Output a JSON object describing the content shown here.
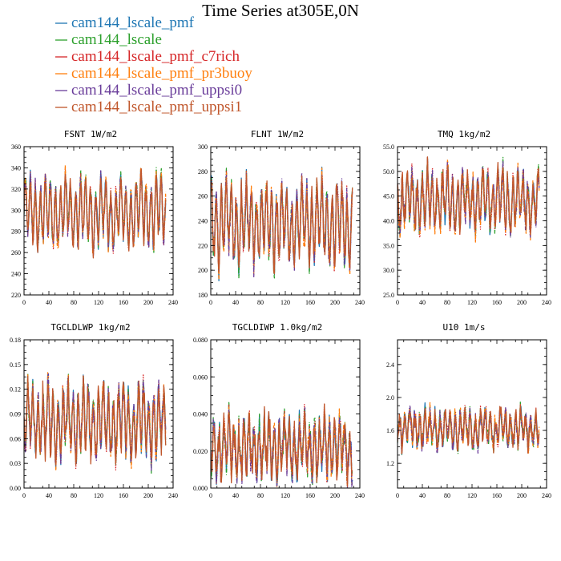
{
  "title": "Time Series at305E,0N",
  "legend": [
    {
      "name": "cam144_lscale_pmf",
      "color": "#1f77b4",
      "dash": "solid"
    },
    {
      "name": "cam144_lscale",
      "color": "#2ca02c",
      "dash": "dashdot"
    },
    {
      "name": "cam144_lscale_pmf_c7rich",
      "color": "#d62728",
      "dash": "dotted"
    },
    {
      "name": "cam144_lscale_pmf_pr3buoy",
      "color": "#ff7f0e",
      "dash": "dashed"
    },
    {
      "name": "cam144_lscale_pmf_uppsi0",
      "color": "#6a3d9a",
      "dash": "dashdot"
    },
    {
      "name": "cam144_lscale_pmf_uppsi1",
      "color": "#c0562b",
      "dash": "solid"
    }
  ],
  "chart_data": [
    {
      "type": "line",
      "title": "FSNT   1W/m2",
      "xlim": [
        0,
        240
      ],
      "ylim": [
        220,
        360
      ],
      "xticks": [
        0,
        40,
        80,
        120,
        160,
        200,
        240
      ],
      "yticks": [
        220,
        240,
        260,
        280,
        300,
        320,
        340,
        360
      ],
      "ytick_labels": [
        "220",
        "240",
        "260",
        "280",
        "300",
        "320",
        "340",
        "360"
      ],
      "x": [
        0,
        240
      ],
      "n_points": 228,
      "mean": 298,
      "amplitude": 34,
      "noise": 9
    },
    {
      "type": "line",
      "title": "FLNT   1W/m2",
      "xlim": [
        0,
        240
      ],
      "ylim": [
        180,
        300
      ],
      "xticks": [
        0,
        40,
        80,
        120,
        160,
        200,
        240
      ],
      "yticks": [
        180,
        200,
        220,
        240,
        260,
        280,
        300
      ],
      "ytick_labels": [
        "180",
        "200",
        "220",
        "240",
        "260",
        "280",
        "300"
      ],
      "x": [
        0,
        240
      ],
      "n_points": 228,
      "mean": 238,
      "amplitude": 33,
      "noise": 10
    },
    {
      "type": "line",
      "title": "TMQ   1kg/m2",
      "xlim": [
        0,
        240
      ],
      "ylim": [
        25,
        55
      ],
      "xticks": [
        0,
        40,
        80,
        120,
        160,
        200,
        240
      ],
      "yticks": [
        25,
        30,
        35,
        40,
        45,
        50,
        55
      ],
      "ytick_labels": [
        "25.0",
        "30.0",
        "35.0",
        "40.0",
        "45.0",
        "50.0",
        "55.0"
      ],
      "x": [
        0,
        240
      ],
      "n_points": 228,
      "mean": 44,
      "amplitude": 6,
      "noise": 2.2
    },
    {
      "type": "line",
      "title": "TGCLDLWP   1kg/m2",
      "xlim": [
        0,
        240
      ],
      "ylim": [
        0,
        0.18
      ],
      "xticks": [
        0,
        40,
        80,
        120,
        160,
        200,
        240
      ],
      "yticks": [
        0,
        0.03,
        0.06,
        0.09,
        0.12,
        0.15,
        0.18
      ],
      "ytick_labels": [
        "0.00",
        "0.03",
        "0.06",
        "0.09",
        "0.12",
        "0.15",
        "0.18"
      ],
      "x": [
        0,
        240
      ],
      "n_points": 228,
      "mean": 0.08,
      "amplitude": 0.045,
      "noise": 0.015
    },
    {
      "type": "line",
      "title": "TGCLDIWP   1.0kg/m2",
      "xlim": [
        0,
        240
      ],
      "ylim": [
        0,
        0.08
      ],
      "xticks": [
        0,
        40,
        80,
        120,
        160,
        200,
        240
      ],
      "yticks": [
        0,
        0.02,
        0.04,
        0.06,
        0.08
      ],
      "ytick_labels": [
        "0.000",
        "0.020",
        "0.040",
        "0.060",
        "0.080"
      ],
      "x": [
        0,
        240
      ],
      "n_points": 228,
      "mean": 0.022,
      "amplitude": 0.016,
      "noise": 0.007
    },
    {
      "type": "line",
      "title": "U10   1m/s",
      "xlim": [
        0,
        240
      ],
      "ylim": [
        0.9,
        2.7
      ],
      "xticks": [
        0,
        40,
        80,
        120,
        160,
        200,
        240
      ],
      "yticks": [
        1.2,
        1.6,
        2.0,
        2.4
      ],
      "ytick_labels": [
        "1.2",
        "1.6",
        "2.0",
        "2.4"
      ],
      "x": [
        0,
        240
      ],
      "n_points": 228,
      "mean": 1.62,
      "amplitude": 0.22,
      "noise": 0.1
    }
  ]
}
